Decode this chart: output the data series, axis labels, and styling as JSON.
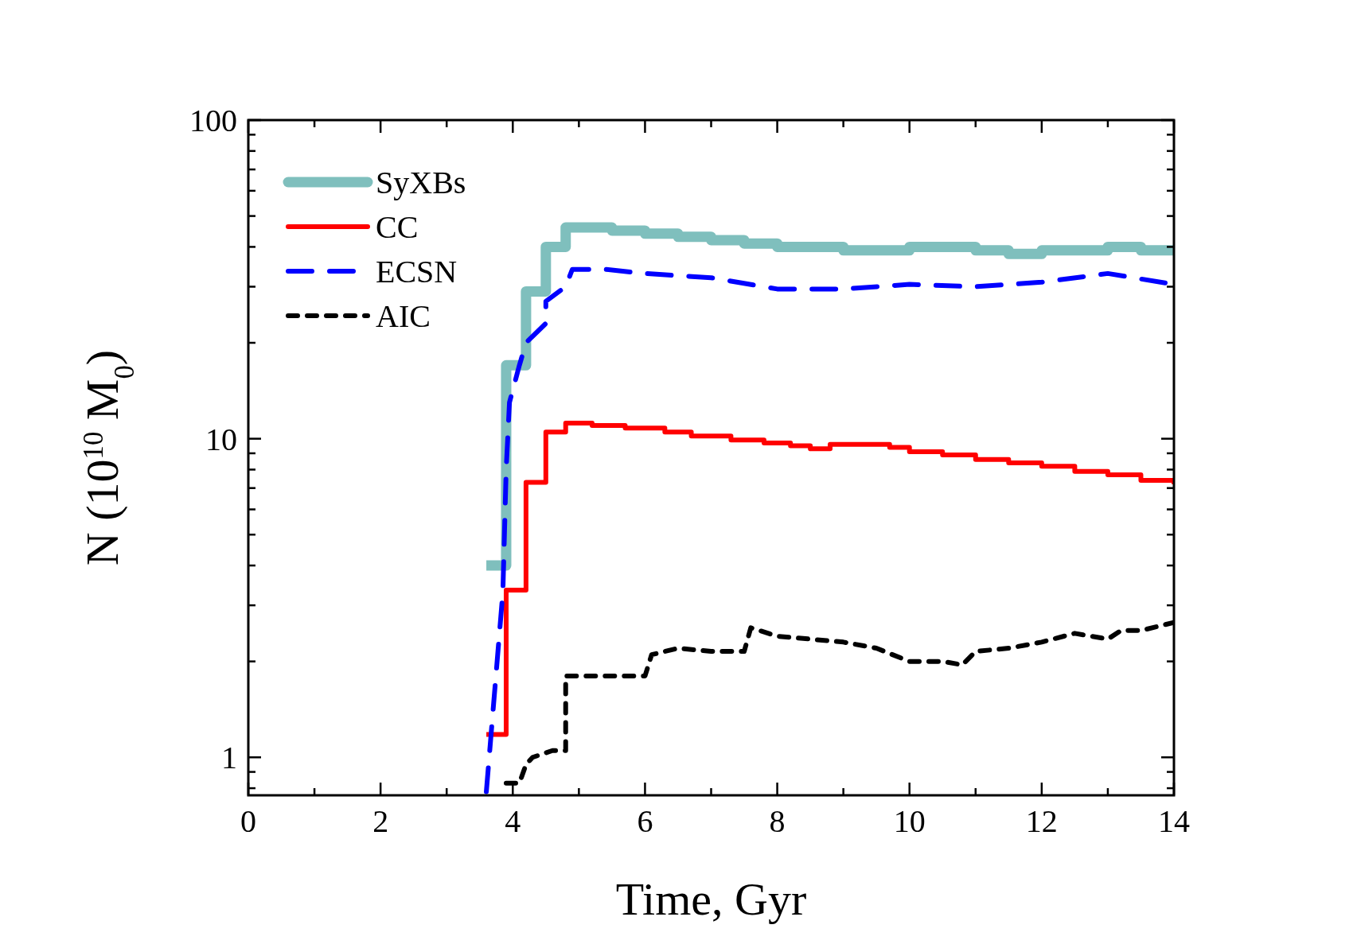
{
  "chart_data": {
    "type": "line",
    "xlabel": "Time, Gyr",
    "ylabel": "N (10$^{10}$ M$_{0}$)",
    "log": "y",
    "xlim": [
      0,
      14
    ],
    "ylim": [
      0.76,
      100
    ],
    "xticks": [
      0,
      {
        "value": 1,
        "label": null
      },
      2,
      {
        "value": 3,
        "label": null
      },
      4,
      {
        "value": 5,
        "label": null
      },
      6,
      {
        "value": 7,
        "label": null
      },
      8,
      {
        "value": 9,
        "label": null
      },
      10,
      {
        "value": 11,
        "label": null
      },
      12,
      {
        "value": 13,
        "label": null
      },
      14
    ],
    "yticks": [
      {
        "value": 0.8,
        "label": null
      },
      {
        "value": 0.9,
        "label": null
      },
      1,
      {
        "value": 2,
        "label": null
      },
      {
        "value": 3,
        "label": null
      },
      {
        "value": 4,
        "label": null
      },
      {
        "value": 5,
        "label": null
      },
      {
        "value": 6,
        "label": null
      },
      {
        "value": 7,
        "label": null
      },
      {
        "value": 8,
        "label": null
      },
      {
        "value": 9,
        "label": null
      },
      10,
      {
        "value": 20,
        "label": null
      },
      {
        "value": 30,
        "label": null
      },
      {
        "value": 40,
        "label": null
      },
      {
        "value": 50,
        "label": null
      },
      {
        "value": 60,
        "label": null
      },
      {
        "value": 70,
        "label": null
      },
      {
        "value": 80,
        "label": null
      },
      {
        "value": 90,
        "label": null
      },
      100
    ],
    "grid": false,
    "legend": "top left",
    "marker": "none",
    "series": [
      {
        "name": "SyXBs",
        "type": "step",
        "color": "#7fbfbd",
        "line_style": "solid",
        "x": [
          3.6,
          3.9,
          4.2,
          4.5,
          4.8,
          5.5,
          6.0,
          6.5,
          7.0,
          7.5,
          8.0,
          9.0,
          10.0,
          10.5,
          11.0,
          11.5,
          12.0,
          13.0,
          13.5,
          14.0
        ],
        "values": [
          4,
          17,
          29,
          40,
          46,
          45,
          44,
          43,
          42,
          41,
          40,
          39,
          40,
          40,
          39,
          38,
          39,
          40,
          39,
          38
        ]
      },
      {
        "name": "CC",
        "type": "step",
        "color": "#ff0000",
        "line_style": "solid",
        "x": [
          3.6,
          3.9,
          4.2,
          4.5,
          4.8,
          5.2,
          5.7,
          6.3,
          6.7,
          7.3,
          7.8,
          8.2,
          8.5,
          8.8,
          9.4,
          9.7,
          10.0,
          10.5,
          11.0,
          11.5,
          12.0,
          12.5,
          13.0,
          13.5,
          14.0
        ],
        "values": [
          1.18,
          3.35,
          7.3,
          10.5,
          11.2,
          11.0,
          10.8,
          10.5,
          10.2,
          9.9,
          9.7,
          9.5,
          9.3,
          9.6,
          9.6,
          9.4,
          9.1,
          8.9,
          8.6,
          8.4,
          8.2,
          7.9,
          7.7,
          7.4,
          7.2
        ]
      },
      {
        "name": "ECSN",
        "type": "line",
        "color": "#0000ff",
        "line_style": "dashed",
        "x": [
          3.6,
          3.85,
          3.9,
          3.95,
          4.1,
          4.2,
          4.5,
          4.5,
          4.8,
          4.9,
          5.4,
          6.0,
          7.0,
          8.0,
          9.0,
          10.0,
          11.0,
          12.0,
          13.0,
          14.0
        ],
        "values": [
          0.78,
          3.3,
          8,
          13,
          17,
          20,
          23,
          27,
          30,
          34,
          34,
          33,
          32,
          29.5,
          29.5,
          30.5,
          30,
          31,
          33,
          30.5
        ]
      },
      {
        "name": "AIC",
        "type": "line",
        "color": "#000000",
        "line_style": "dotted",
        "x": [
          3.9,
          4.1,
          4.2,
          4.3,
          4.6,
          4.8,
          4.8,
          5.5,
          6.0,
          6.1,
          6.5,
          7.0,
          7.5,
          7.6,
          8.0,
          9.0,
          9.5,
          10.0,
          10.5,
          10.8,
          11.0,
          11.5,
          12.0,
          12.5,
          13.0,
          13.2,
          13.5,
          14.0
        ],
        "values": [
          0.83,
          0.83,
          0.95,
          1.0,
          1.05,
          1.05,
          1.8,
          1.8,
          1.8,
          2.1,
          2.2,
          2.15,
          2.15,
          2.55,
          2.4,
          2.3,
          2.2,
          2.0,
          2.0,
          1.95,
          2.15,
          2.2,
          2.3,
          2.45,
          2.35,
          2.5,
          2.5,
          2.65
        ]
      }
    ]
  }
}
